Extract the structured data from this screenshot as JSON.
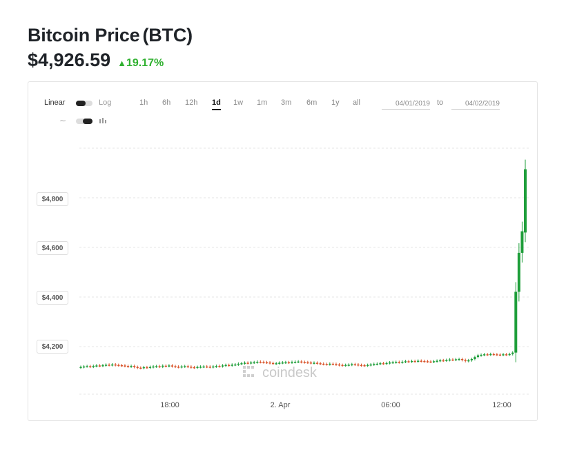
{
  "header": {
    "title": "Bitcoin Price",
    "ticker": "(BTC)",
    "price": "$4,926.59",
    "change_arrow": "▲",
    "change": "19.17%",
    "change_color": "#2fb02f"
  },
  "controls": {
    "scale_linear": "Linear",
    "scale_log": "Log",
    "ranges": [
      "1h",
      "6h",
      "12h",
      "1d",
      "1w",
      "1m",
      "3m",
      "6m",
      "1y",
      "all"
    ],
    "active_range": "1d",
    "date_from": "04/01/2019",
    "date_to": "04/02/2019",
    "to_label": "to",
    "line_icon": "line-chart-icon",
    "candle_icon": "candlestick-icon"
  },
  "watermark": "coindesk",
  "chart_data": {
    "type": "candlestick",
    "title": "",
    "xlabel": "",
    "ylabel": "",
    "x_ticks": [
      "18:00",
      "2. Apr",
      "06:00",
      "12:00"
    ],
    "y_ticks": [
      "$4,200",
      "$4,400",
      "$4,600",
      "$4,800"
    ],
    "y_tick_values": [
      4200,
      4400,
      4600,
      4800
    ],
    "ylim": [
      4000,
      5000
    ],
    "up_color": "#1e9e3a",
    "down_color": "#d9542b",
    "grid": true,
    "closes": [
      4118,
      4120,
      4121,
      4119,
      4122,
      4124,
      4123,
      4125,
      4127,
      4126,
      4128,
      4126,
      4125,
      4124,
      4122,
      4120,
      4122,
      4118,
      4115,
      4114,
      4117,
      4116,
      4118,
      4120,
      4121,
      4119,
      4123,
      4122,
      4124,
      4121,
      4119,
      4118,
      4120,
      4121,
      4119,
      4117,
      4116,
      4118,
      4119,
      4120,
      4119,
      4118,
      4120,
      4122,
      4121,
      4124,
      4126,
      4125,
      4127,
      4128,
      4131,
      4133,
      4135,
      4134,
      4136,
      4137,
      4139,
      4138,
      4137,
      4136,
      4134,
      4132,
      4133,
      4135,
      4136,
      4137,
      4136,
      4138,
      4139,
      4140,
      4138,
      4137,
      4136,
      4134,
      4135,
      4133,
      4131,
      4130,
      4129,
      4131,
      4130,
      4128,
      4126,
      4125,
      4126,
      4127,
      4129,
      4128,
      4126,
      4125,
      4124,
      4126,
      4128,
      4130,
      4131,
      4133,
      4132,
      4134,
      4136,
      4137,
      4138,
      4137,
      4139,
      4141,
      4140,
      4142,
      4141,
      4143,
      4142,
      4141,
      4140,
      4139,
      4141,
      4143,
      4145,
      4144,
      4146,
      4148,
      4147,
      4149,
      4150,
      4146,
      4142,
      4145,
      4150,
      4158,
      4165,
      4167,
      4169,
      4168,
      4170,
      4169,
      4168,
      4167,
      4169,
      4168,
      4170,
      4176,
      4421,
      4578,
      4665,
      4915
    ],
    "opens": [
      4116,
      4118,
      4121,
      4121,
      4119,
      4122,
      4124,
      4123,
      4125,
      4127,
      4126,
      4128,
      4126,
      4125,
      4124,
      4122,
      4120,
      4122,
      4118,
      4115,
      4114,
      4117,
      4116,
      4118,
      4120,
      4121,
      4119,
      4123,
      4122,
      4124,
      4121,
      4119,
      4118,
      4120,
      4121,
      4119,
      4117,
      4116,
      4118,
      4119,
      4120,
      4119,
      4118,
      4120,
      4122,
      4121,
      4124,
      4126,
      4125,
      4127,
      4128,
      4131,
      4133,
      4135,
      4134,
      4136,
      4137,
      4139,
      4138,
      4137,
      4136,
      4134,
      4132,
      4133,
      4135,
      4136,
      4137,
      4136,
      4138,
      4139,
      4140,
      4138,
      4137,
      4136,
      4134,
      4135,
      4133,
      4131,
      4130,
      4129,
      4131,
      4130,
      4128,
      4126,
      4125,
      4126,
      4127,
      4129,
      4128,
      4126,
      4125,
      4124,
      4126,
      4128,
      4130,
      4131,
      4133,
      4132,
      4134,
      4136,
      4137,
      4138,
      4137,
      4139,
      4141,
      4140,
      4142,
      4141,
      4143,
      4142,
      4141,
      4140,
      4139,
      4141,
      4143,
      4145,
      4144,
      4146,
      4148,
      4147,
      4149,
      4150,
      4146,
      4142,
      4145,
      4150,
      4158,
      4165,
      4167,
      4169,
      4168,
      4170,
      4169,
      4168,
      4167,
      4169,
      4168,
      4170,
      4176,
      4421,
      4578,
      4660
    ]
  }
}
